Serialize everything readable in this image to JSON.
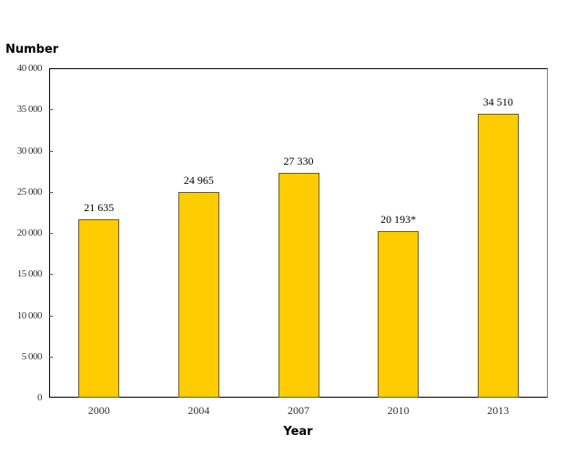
{
  "chart_data": {
    "type": "bar",
    "title": "",
    "xlabel": "Year",
    "ylabel": "Number",
    "categories": [
      "2000",
      "2004",
      "2007",
      "2010",
      "2013"
    ],
    "values": [
      21635,
      24965,
      27330,
      20193,
      34510
    ],
    "value_labels": [
      "21 635",
      "24 965",
      "27 330",
      "20 193*",
      "34 510"
    ],
    "ylim": [
      0,
      40000
    ],
    "yticks": [
      0,
      5000,
      10000,
      15000,
      20000,
      25000,
      30000,
      35000,
      40000
    ],
    "ytick_labels": [
      "0",
      "5 000",
      "10 000",
      "15 000",
      "20 000",
      "25 000",
      "30 000",
      "35 000",
      "40 000"
    ],
    "bar_color": "#ffcc00",
    "grid": false,
    "legend": null
  },
  "axes": {
    "ylabel": "Number",
    "xlabel": "Year"
  }
}
